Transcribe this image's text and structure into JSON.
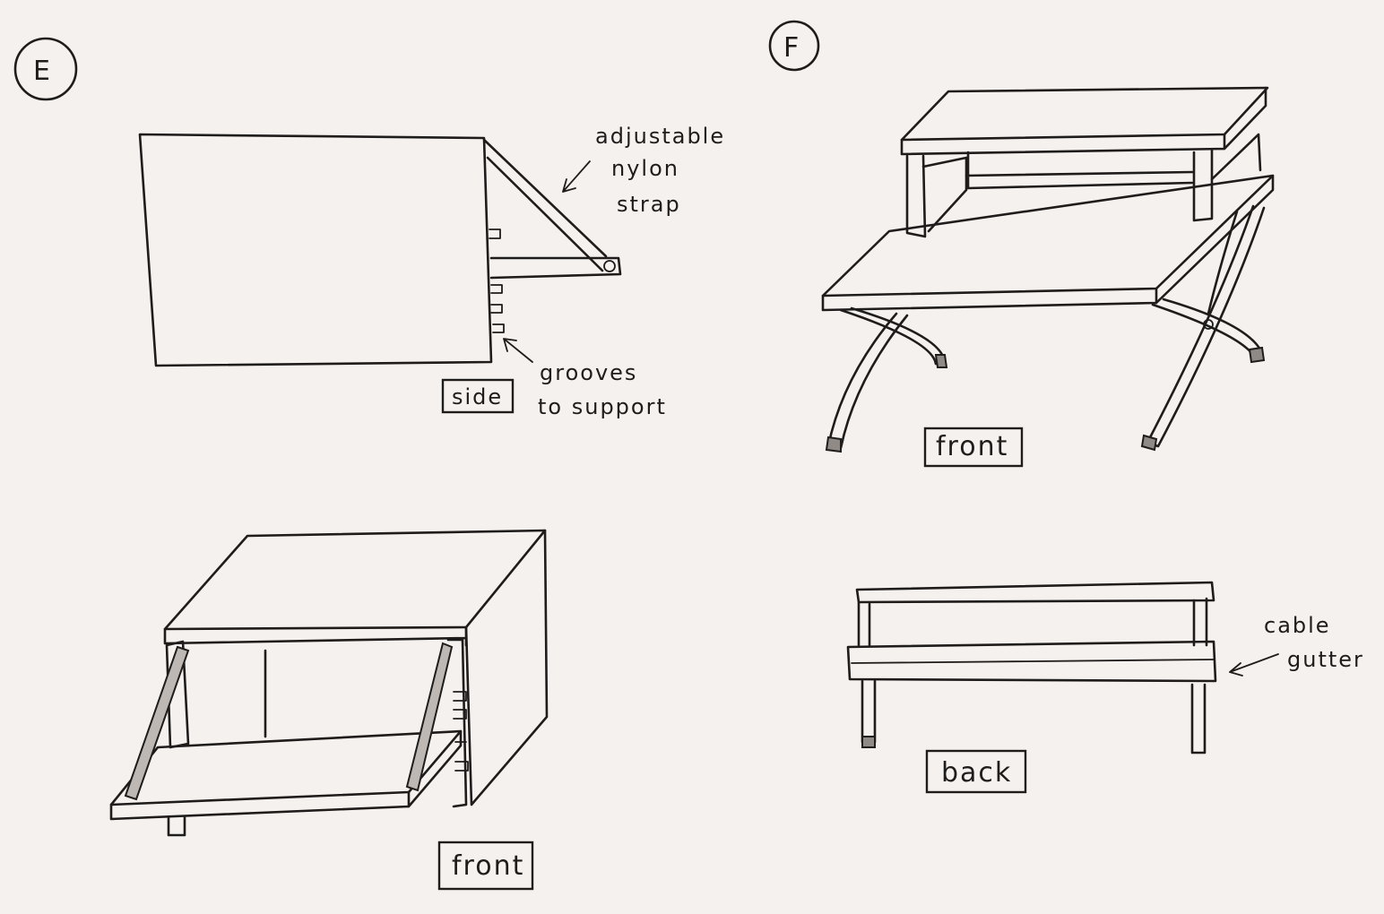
{
  "figure_e": {
    "id_label": "E",
    "side": {
      "strap_label": [
        "adjustable",
        "nylon",
        "strap"
      ],
      "grooves_label": [
        "grooves",
        "to support"
      ],
      "view_label": "side"
    },
    "front": {
      "view_label": "front"
    }
  },
  "figure_f": {
    "id_label": "F",
    "front": {
      "view_label": "front"
    },
    "back": {
      "view_label": "back",
      "gutter_label": [
        "cable",
        "gutter"
      ]
    }
  }
}
